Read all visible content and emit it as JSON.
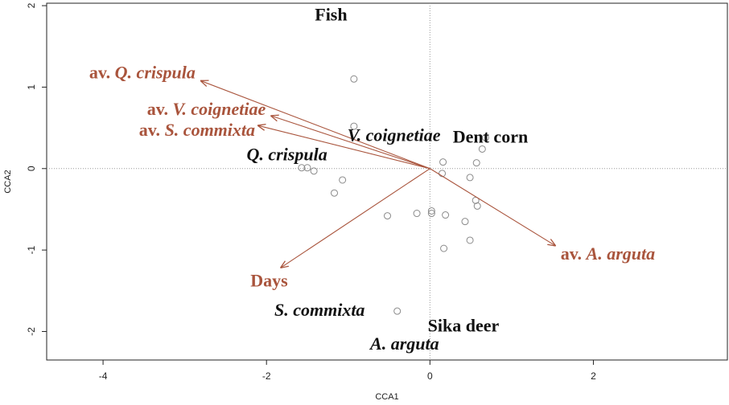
{
  "chart_data": {
    "type": "biplot",
    "x_label": "CCA1",
    "y_label": "CCA2",
    "xlim": [
      -4.69,
      3.64
    ],
    "ylim": [
      -2.35,
      2.03
    ],
    "xticks": [
      -4,
      -2,
      0,
      2
    ],
    "yticks": [
      -2,
      -1,
      0,
      1,
      2
    ],
    "point_color": "#8a8a8a",
    "arrow_color": "#a9543c",
    "points": {
      "x": [
        -0.93,
        -0.93,
        0.68,
        0.64,
        0.16,
        0.57,
        -1.57,
        -1.5,
        -1.42,
        0.15,
        0.49,
        -1.07,
        -1.17,
        0.56,
        0.58,
        -0.16,
        -0.52,
        0.19,
        0.02,
        0.02,
        0.43,
        0.49,
        0.17,
        -0.4
      ],
      "y": [
        1.1,
        0.52,
        0.38,
        0.24,
        0.08,
        0.07,
        0.01,
        0.01,
        -0.03,
        -0.06,
        -0.11,
        -0.14,
        -0.3,
        -0.39,
        -0.46,
        -0.55,
        -0.58,
        -0.57,
        -0.52,
        -0.55,
        -0.65,
        -0.88,
        -0.98,
        -1.75
      ]
    },
    "arrows": [
      {
        "prefix": "av.",
        "name": "Q. crispula",
        "x": -2.81,
        "y": 1.08
      },
      {
        "prefix": "av.",
        "name": "V. coignetiae",
        "x": -1.95,
        "y": 0.65
      },
      {
        "prefix": "av.",
        "name": "S. commixta",
        "x": -2.11,
        "y": 0.53
      },
      {
        "prefix": "av.",
        "name": "A. arguta",
        "x": 1.54,
        "y": -0.95
      },
      {
        "name": "Days",
        "x": -1.83,
        "y": -1.22
      }
    ],
    "labels": [
      {
        "text": "Fish",
        "x": -1.21,
        "y": 1.87,
        "italic": false
      },
      {
        "text": "Dent corn",
        "x": 0.74,
        "y": 0.37,
        "italic": false
      },
      {
        "text": "V. coignetiae",
        "x": -0.44,
        "y": 0.39,
        "italic": true
      },
      {
        "text": "Q. crispula",
        "x": -1.75,
        "y": 0.15,
        "italic": true
      },
      {
        "text": "S. commixta",
        "x": -1.35,
        "y": -1.76,
        "italic": true
      },
      {
        "text": "Sika deer",
        "x": 0.41,
        "y": -1.95,
        "italic": false
      },
      {
        "text": "A. arguta",
        "x": -0.31,
        "y": -2.17,
        "italic": true
      }
    ]
  }
}
